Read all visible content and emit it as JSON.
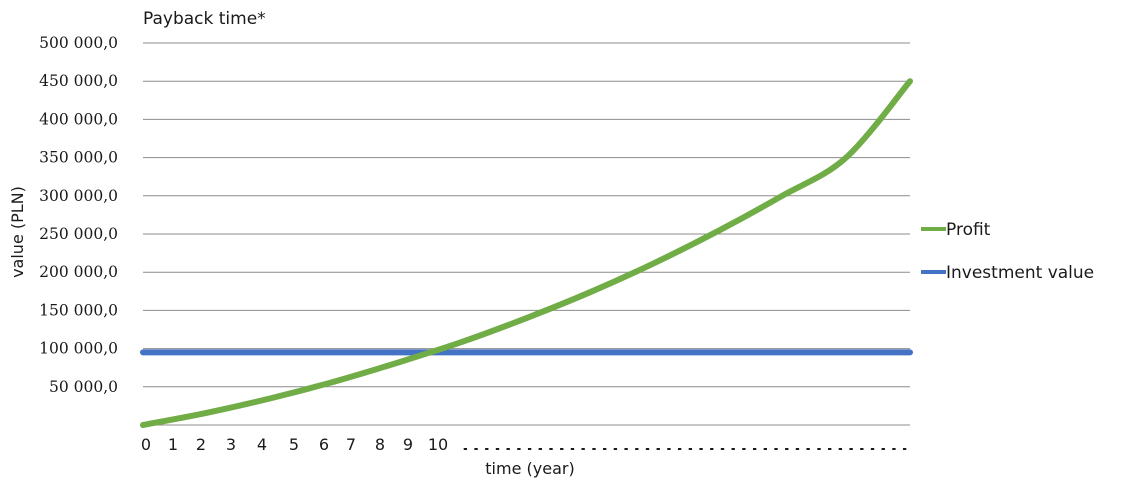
{
  "chart_data": {
    "type": "line",
    "title": "Payback time*",
    "xlabel": "time (year)",
    "ylabel": "value (PLN)",
    "x_tick_labels": [
      "0",
      "1",
      "2",
      "3",
      "4",
      "5",
      "6",
      "7",
      "8",
      "9",
      "10"
    ],
    "x_tick_suffix": "……………………………………",
    "y_tick_labels": [
      "50 000,0",
      "100 000,0",
      "150 000,0",
      "200 000,0",
      "250 000,0",
      "300 000,0",
      "350 000,0",
      "400 000,0",
      "450 000,0",
      "500 000,0"
    ],
    "ylim": [
      0,
      500000
    ],
    "xlim": [
      0,
      24
    ],
    "grid": true,
    "legend_position": "right",
    "series": [
      {
        "name": "Profit",
        "color": "#70ad47",
        "x": [
          0,
          2,
          4,
          6,
          8,
          10,
          12,
          14,
          16,
          18,
          20,
          22,
          24
        ],
        "values": [
          0,
          16000,
          35000,
          57000,
          82000,
          109000,
          140000,
          174000,
          212000,
          254000,
          300000,
          350000,
          450000
        ]
      },
      {
        "name": "Investment value",
        "color": "#4472c4",
        "x": [
          0,
          24
        ],
        "values": [
          95000,
          95000
        ]
      }
    ]
  }
}
